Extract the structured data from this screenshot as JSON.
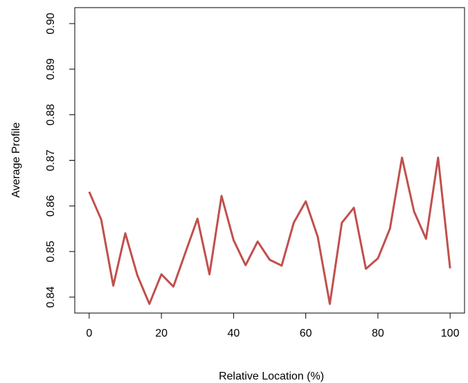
{
  "chart_data": {
    "type": "line",
    "title": "",
    "xlabel": "Relative Location (%)",
    "ylabel": "Average Profile",
    "xlim": [
      -4,
      104
    ],
    "ylim": [
      0.8365,
      0.9035
    ],
    "xticks": [
      0,
      20,
      40,
      60,
      80,
      100
    ],
    "xtick_labels": [
      "0",
      "20",
      "40",
      "60",
      "80",
      "100"
    ],
    "yticks": [
      0.84,
      0.85,
      0.86,
      0.87,
      0.88,
      0.89,
      0.9
    ],
    "ytick_labels": [
      "0.84",
      "0.85",
      "0.86",
      "0.87",
      "0.88",
      "0.89",
      "0.90"
    ],
    "grid": false,
    "legend": "none",
    "series": [
      {
        "color": "#c0504d",
        "x": [
          0,
          3.33,
          6.67,
          10,
          13.33,
          16.67,
          20,
          23.33,
          26.67,
          30,
          33.33,
          36.67,
          40,
          43.33,
          46.67,
          50,
          53.33,
          56.67,
          60,
          63.33,
          66.67,
          70,
          73.33,
          76.67,
          80,
          83.33,
          86.67,
          90,
          93.33,
          96.67,
          100
        ],
        "y": [
          0.8631,
          0.857,
          0.8425,
          0.854,
          0.8448,
          0.8385,
          0.845,
          0.8423,
          0.8498,
          0.8572,
          0.845,
          0.8622,
          0.8525,
          0.847,
          0.8522,
          0.8482,
          0.8469,
          0.8563,
          0.861,
          0.8532,
          0.8385,
          0.8563,
          0.8596,
          0.8462,
          0.8485,
          0.855,
          0.8706,
          0.8588,
          0.8528,
          0.8706,
          0.8463
        ]
      }
    ]
  }
}
